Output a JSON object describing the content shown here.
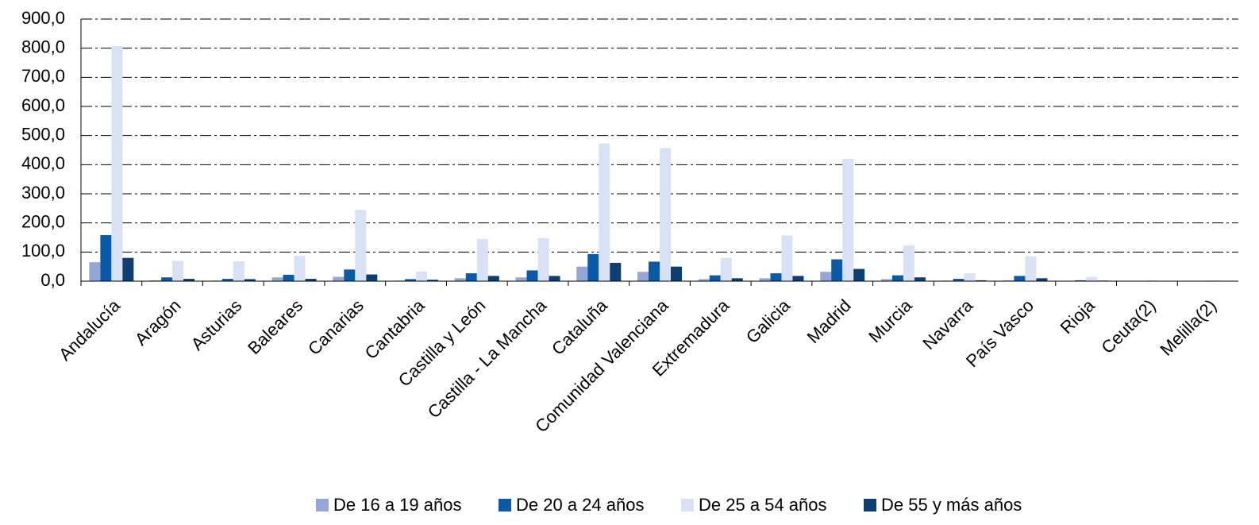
{
  "chart_data": {
    "type": "bar",
    "categories": [
      "Andalucía",
      "Aragón",
      "Asturias",
      "Baleares",
      "Canarias",
      "Cantabria",
      "Castilla y León",
      "Castilla - La Mancha",
      "Cataluña",
      "Comunidad Valenciana",
      "Extremadura",
      "Galicia",
      "Madrid",
      "Murcia",
      "Navarra",
      "País Vasco",
      "Rioja",
      "Ceuta(2)",
      "Melilla(2)"
    ],
    "series": [
      {
        "name": "De 16 a 19 años",
        "color": "#94a7d6",
        "values": [
          65,
          3,
          2,
          13,
          15,
          2,
          10,
          13,
          50,
          32,
          7,
          10,
          32,
          7,
          2,
          3,
          1,
          1,
          1
        ]
      },
      {
        "name": "De 20 a 24 años",
        "color": "#0b5aa8",
        "values": [
          158,
          13,
          8,
          22,
          40,
          7,
          27,
          37,
          93,
          67,
          20,
          27,
          75,
          20,
          8,
          18,
          3,
          1,
          1
        ]
      },
      {
        "name": "De 25 a 54 años",
        "color": "#d9e2f5",
        "values": [
          808,
          70,
          68,
          87,
          245,
          33,
          145,
          148,
          473,
          457,
          80,
          157,
          420,
          123,
          27,
          85,
          15,
          3,
          3
        ]
      },
      {
        "name": "De 55 y más años",
        "color": "#0d3f73",
        "values": [
          80,
          8,
          7,
          8,
          23,
          5,
          18,
          18,
          63,
          50,
          10,
          18,
          42,
          13,
          3,
          10,
          2,
          1,
          1
        ]
      }
    ],
    "ylim": [
      0,
      900
    ],
    "yticks": [
      {
        "value": 0,
        "label": "0,0"
      },
      {
        "value": 100,
        "label": "100,0"
      },
      {
        "value": 200,
        "label": "200,0"
      },
      {
        "value": 300,
        "label": "300,0"
      },
      {
        "value": 400,
        "label": "400,0"
      },
      {
        "value": 500,
        "label": "500,0"
      },
      {
        "value": 600,
        "label": "600,0"
      },
      {
        "value": 700,
        "label": "700,0"
      },
      {
        "value": 800,
        "label": "800,0"
      },
      {
        "value": 900,
        "label": "900,0"
      }
    ],
    "grid": true,
    "legend": "bottom"
  }
}
